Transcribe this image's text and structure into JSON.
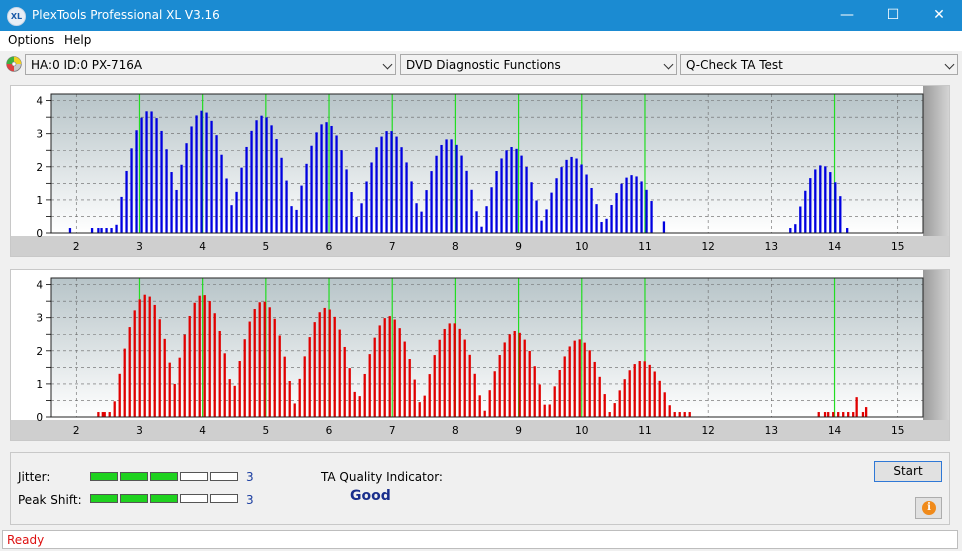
{
  "window": {
    "title": "PlexTools Professional XL V3.16",
    "icon_label": "XL",
    "minimize": "—",
    "maximize": "☐",
    "close": "✕"
  },
  "menu": [
    "Options",
    "Help"
  ],
  "toolbar": {
    "drive": "HA:0 ID:0  PX-716A",
    "function": "DVD Diagnostic Functions",
    "test": "Q-Check  TA Test"
  },
  "chart_data": [
    {
      "type": "bar",
      "color": "#0000e0",
      "x_ticks": [
        2,
        3,
        4,
        5,
        6,
        7,
        8,
        9,
        10,
        11,
        12,
        13,
        14,
        15
      ],
      "y_ticks": [
        "0",
        "0.5",
        "1",
        "1.5",
        "2",
        "2.5",
        "3",
        "3.5",
        "4"
      ],
      "xlim": [
        1.6,
        15.4
      ],
      "ylim": [
        0,
        4.2
      ],
      "green_markers": [
        3,
        4,
        5,
        6,
        7,
        8,
        9,
        10,
        11,
        14
      ],
      "peaks": [
        {
          "center": 3.15,
          "height": 3.7,
          "width": 0.42
        },
        {
          "center": 4.0,
          "height": 3.7,
          "width": 0.42
        },
        {
          "center": 4.95,
          "height": 3.55,
          "width": 0.42
        },
        {
          "center": 5.95,
          "height": 3.35,
          "width": 0.42
        },
        {
          "center": 6.95,
          "height": 3.1,
          "width": 0.42
        },
        {
          "center": 7.9,
          "height": 2.85,
          "width": 0.4
        },
        {
          "center": 8.9,
          "height": 2.6,
          "width": 0.4
        },
        {
          "center": 9.85,
          "height": 2.3,
          "width": 0.4
        },
        {
          "center": 10.8,
          "height": 1.75,
          "width": 0.38
        },
        {
          "center": 13.8,
          "height": 2.05,
          "width": 0.36
        }
      ],
      "ranges": [
        [
          2.4,
          11.15
        ],
        [
          13.3,
          14.15
        ]
      ],
      "extras": [
        [
          1.9,
          0.15
        ],
        [
          2.25,
          0.15
        ],
        [
          2.35,
          0.15
        ],
        [
          11.3,
          0.35
        ],
        [
          14.2,
          0.15
        ]
      ]
    },
    {
      "type": "bar",
      "color": "#e00000",
      "x_ticks": [
        2,
        3,
        4,
        5,
        6,
        7,
        8,
        9,
        10,
        11,
        12,
        13,
        14,
        15
      ],
      "y_ticks": [
        "0",
        "0.5",
        "1",
        "1.5",
        "2",
        "2.5",
        "3",
        "3.5",
        "4"
      ],
      "xlim": [
        1.6,
        15.4
      ],
      "ylim": [
        0,
        4.2
      ],
      "green_markers": [
        3,
        4,
        5,
        6,
        7,
        8,
        9,
        10,
        11,
        14
      ],
      "peaks": [
        {
          "center": 3.1,
          "height": 3.7,
          "width": 0.42
        },
        {
          "center": 4.0,
          "height": 3.7,
          "width": 0.42
        },
        {
          "center": 4.95,
          "height": 3.5,
          "width": 0.42
        },
        {
          "center": 5.95,
          "height": 3.3,
          "width": 0.42
        },
        {
          "center": 6.95,
          "height": 3.05,
          "width": 0.42
        },
        {
          "center": 7.95,
          "height": 2.85,
          "width": 0.4
        },
        {
          "center": 8.95,
          "height": 2.6,
          "width": 0.4
        },
        {
          "center": 9.95,
          "height": 2.35,
          "width": 0.4
        },
        {
          "center": 10.95,
          "height": 1.7,
          "width": 0.4
        }
      ],
      "ranges": [
        [
          2.45,
          11.75
        ],
        [
          13.9,
          14.3
        ]
      ],
      "extras": [
        [
          2.35,
          0.15
        ],
        [
          2.42,
          0.15
        ],
        [
          13.75,
          0.15
        ],
        [
          13.85,
          0.15
        ],
        [
          14.35,
          0.6
        ],
        [
          14.45,
          0.15
        ],
        [
          14.5,
          0.3
        ]
      ]
    }
  ],
  "metrics": {
    "jitter_label": "Jitter:",
    "jitter_level": 3,
    "jitter_value": "3",
    "peak_label": "Peak Shift:",
    "peak_level": 3,
    "peak_value": "3",
    "segments_total": 5,
    "ta_label": "TA Quality Indicator:",
    "ta_value": "Good"
  },
  "buttons": {
    "start": "Start",
    "info": "i"
  },
  "status": "Ready"
}
